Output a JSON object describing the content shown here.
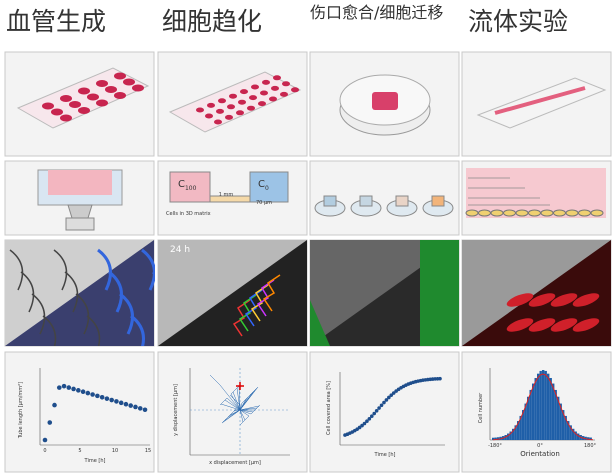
{
  "headers": [
    "血管生成",
    "细胞趋化",
    "伤口愈合/细胞迁移",
    "流体实验"
  ],
  "chemotaxis_diagram": {
    "left": {
      "base": "C",
      "sub": "100"
    },
    "right": {
      "base": "C",
      "sub": "0"
    },
    "distance": "1 mm",
    "height": "70 µm",
    "matrix": "Cells in 3D matrix"
  },
  "chemotaxis_image": {
    "time": "24 h"
  },
  "plots": [
    {
      "y_label": "Tube length [µm/mm²]",
      "x_label": "Time [h]",
      "x_tick_labels": [
        "0",
        "5",
        "10",
        "15"
      ]
    },
    {
      "y_label": "y displacement [µm]",
      "x_label": "x displacement [µm]"
    },
    {
      "y_label": "Cell covered area [%]",
      "x_label": "Time [h]"
    },
    {
      "y_label": "Cell number",
      "x_label": "Orientation",
      "x_tick_labels": [
        "-180°",
        "0°",
        "180°"
      ]
    }
  ]
}
